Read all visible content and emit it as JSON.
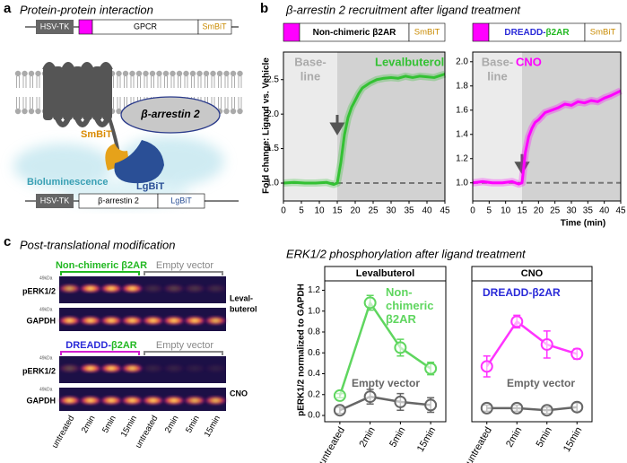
{
  "panel_labels": [
    "a",
    "b",
    "c"
  ],
  "panel_a": {
    "title": "Protein-protein interaction",
    "construct_1": [
      "HSV-TK",
      "GPCR",
      "SmBiT"
    ],
    "arrestin": "β-arrestin 2",
    "smbit": "SmBiT",
    "lgbit": "LgBiT",
    "bioluminescence": "Bioluminescence",
    "construct_2": [
      "HSV-TK",
      "β-arrestin 2",
      "LgBiT"
    ]
  },
  "panel_b": {
    "title": "β-arrestin 2 recruitment after ligand treatment",
    "ylabel": "Fold change: Ligand vs. Vehicle",
    "xlabel": "Time (min)"
  },
  "panel_c": {
    "blot_title": "Post-translational modification",
    "chart_title": "ERK1/2 phosphorylation after ligand treatment",
    "ylabel": "pERK1/2 normalized to GAPDH",
    "lanes": [
      "untreated",
      "2min",
      "5min",
      "15min",
      "untreated",
      "2min",
      "5min",
      "15min"
    ],
    "blots": [
      {
        "group_1": [
          "Non-chimeric β2AR"
        ],
        "group_1_colors": [
          "#22b822"
        ],
        "bracket_color": "#22b822",
        "group_2": "Empty vector",
        "rows": [
          "pERK1/2",
          "GAPDH"
        ],
        "marker": "49kDa",
        "ligand": [
          "Leval-",
          "buterol"
        ]
      },
      {
        "group_1": [
          "DREADD-",
          "β2AR"
        ],
        "group_1_colors": [
          "#2a2ad8",
          "#22b822"
        ],
        "bracket_color": "#d020d0",
        "group_2": "Empty vector",
        "rows": [
          "pERK1/2",
          "GAPDH"
        ],
        "marker": "49kDa",
        "ligand": [
          "CNO"
        ]
      }
    ]
  },
  "chart_data": [
    {
      "type": "line",
      "header": [
        "Non-chimeric β2AR",
        "SmBiT"
      ],
      "header_colors": [
        "#000000"
      ],
      "baseline_label": [
        "Base-",
        "line"
      ],
      "baseline": [
        0,
        15
      ],
      "arrow_x": 15,
      "hline": 1,
      "x": [
        0,
        3,
        6,
        9,
        12,
        14,
        15,
        16,
        17,
        18,
        19,
        20,
        21,
        22,
        24,
        26,
        28,
        30,
        32,
        34,
        36,
        38,
        40,
        42,
        45
      ],
      "series": [
        {
          "name": "Levalbuterol",
          "color": "#33c133",
          "values": [
            1.0,
            1.01,
            1.0,
            1.0,
            1.01,
            0.98,
            1.0,
            1.3,
            1.7,
            1.95,
            2.1,
            2.2,
            2.3,
            2.38,
            2.45,
            2.5,
            2.52,
            2.53,
            2.52,
            2.55,
            2.53,
            2.55,
            2.54,
            2.53,
            2.58
          ]
        }
      ],
      "xlim": [
        0,
        45
      ],
      "xticks": [
        0,
        5,
        10,
        15,
        20,
        25,
        30,
        35,
        40,
        45
      ],
      "ylim": [
        0.74,
        2.9
      ],
      "yticks": [
        {
          "value": 1,
          "label": "1.0"
        },
        {
          "value": 1.5,
          "label": "1.5"
        },
        {
          "value": 2,
          "label": "2.0"
        },
        {
          "value": 2.5,
          "label": "2.5"
        }
      ]
    },
    {
      "type": "line",
      "header": [
        "DREADD-",
        "β2AR",
        "SmBiT"
      ],
      "header_colors": [
        "#2a2ad8",
        "#22b822"
      ],
      "baseline_label": [
        "Base-",
        "line"
      ],
      "baseline": [
        0,
        15
      ],
      "arrow_x": 15,
      "hline": 1,
      "x": [
        0,
        3,
        6,
        9,
        12,
        14,
        15,
        16,
        17,
        18,
        19,
        20,
        21,
        22,
        24,
        26,
        28,
        30,
        32,
        34,
        36,
        38,
        40,
        42,
        45
      ],
      "series": [
        {
          "name": "CNO",
          "color": "#ff00ff",
          "values": [
            1.0,
            1.01,
            1.0,
            1.0,
            1.01,
            0.99,
            1.0,
            1.25,
            1.38,
            1.45,
            1.5,
            1.52,
            1.55,
            1.58,
            1.6,
            1.62,
            1.65,
            1.64,
            1.67,
            1.66,
            1.68,
            1.67,
            1.7,
            1.72,
            1.76
          ]
        }
      ],
      "xlim": [
        0,
        45
      ],
      "xticks": [
        0,
        5,
        10,
        15,
        20,
        25,
        30,
        35,
        40,
        45
      ],
      "ylim": [
        0.85,
        2.08
      ],
      "yticks": [
        {
          "value": 1,
          "label": "1.0"
        },
        {
          "value": 1.2,
          "label": "1.2"
        },
        {
          "value": 1.4,
          "label": "1.4"
        },
        {
          "value": 1.6,
          "label": "1.6"
        },
        {
          "value": 1.8,
          "label": "1.8"
        },
        {
          "value": 2,
          "label": "2.0"
        }
      ]
    },
    {
      "type": "dotline",
      "header": "Levalbuterol",
      "categories": [
        "untreated",
        "2min",
        "5min",
        "15min"
      ],
      "series": [
        {
          "name": "Non-chimeric β2AR",
          "color": "#5fd65f",
          "values": [
            0.19,
            1.08,
            0.65,
            0.45
          ],
          "errors": [
            0.02,
            0.07,
            0.08,
            0.06
          ]
        },
        {
          "name": "Empty vector",
          "color": "#666666",
          "values": [
            0.05,
            0.18,
            0.13,
            0.1
          ],
          "errors": [
            0.03,
            0.07,
            0.08,
            0.07
          ]
        }
      ],
      "ylim": [
        -0.06,
        1.29
      ],
      "yticks": [
        {
          "value": 0,
          "label": "0.0"
        },
        {
          "value": 0.2,
          "label": "0.2"
        },
        {
          "value": 0.4,
          "label": "0.4"
        },
        {
          "value": 0.6,
          "label": "0.6"
        },
        {
          "value": 0.8,
          "label": "0.8"
        },
        {
          "value": 1,
          "label": "1.0"
        },
        {
          "value": 1.2,
          "label": "1.2"
        }
      ]
    },
    {
      "type": "dotline",
      "header": "CNO",
      "categories": [
        "untreated",
        "2min",
        "5min",
        "15min"
      ],
      "series": [
        {
          "name": "DREADD-β2AR",
          "color": "#ff33ff",
          "label_color": "#2a2ad8",
          "values": [
            0.47,
            0.9,
            0.68,
            0.59
          ],
          "errors": [
            0.1,
            0.06,
            0.13,
            0.05
          ]
        },
        {
          "name": "Empty vector",
          "color": "#666666",
          "values": [
            0.07,
            0.07,
            0.05,
            0.08
          ],
          "errors": [
            0.03,
            0.03,
            0.03,
            0.04
          ]
        }
      ],
      "ylim": [
        -0.06,
        1.29
      ]
    }
  ]
}
